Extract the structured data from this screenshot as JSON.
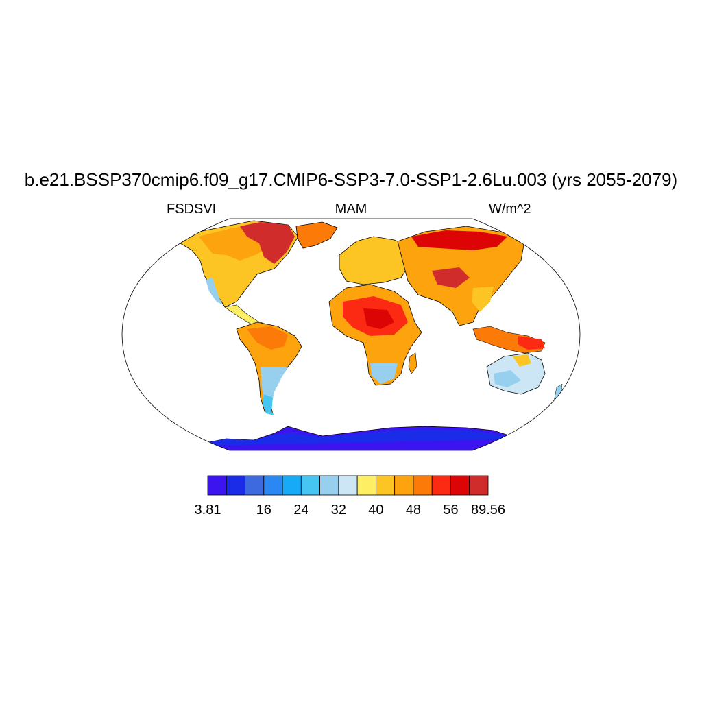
{
  "title": "b.e21.BSSP370cmip6.f09_g17.CMIP6-SSP3-7.0-SSP1-2.6Lu.003 (yrs 2055-2079)",
  "subtitle_left": "FSDSVI",
  "subtitle_center": "MAM",
  "subtitle_right": "W/m^2",
  "colorbar": {
    "colors": [
      "#3c14f0",
      "#1a2ce8",
      "#3e6ae0",
      "#2b88f2",
      "#16aaf7",
      "#46c4f2",
      "#96d0ee",
      "#cde6f5",
      "#fdee64",
      "#fcc524",
      "#fca30e",
      "#fb7a08",
      "#fc2a12",
      "#dc0404",
      "#d12c2c"
    ],
    "tick_labels": [
      "3.81",
      "16",
      "24",
      "32",
      "40",
      "48",
      "56",
      "89.56"
    ]
  }
}
